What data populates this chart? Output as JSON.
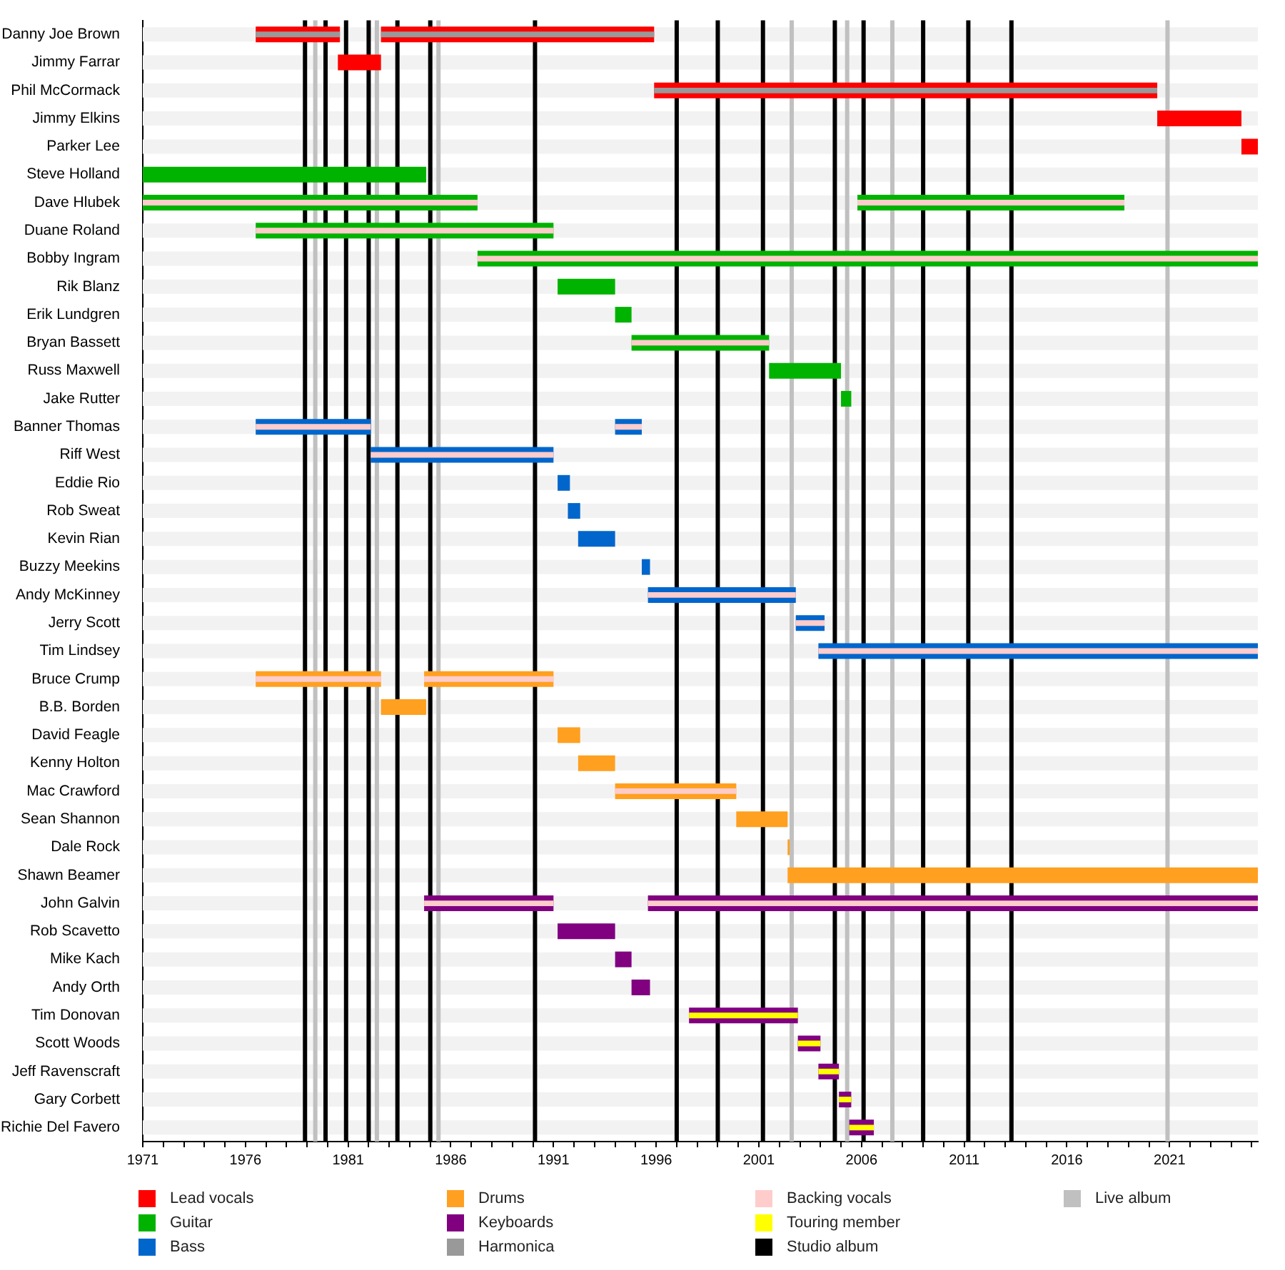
{
  "chart_data": {
    "type": "bar",
    "orientation": "horizontal",
    "legend": "bottom",
    "categories": [
      "Danny Joe Brown",
      "Jimmy Farrar",
      "Phil McCormack",
      "Jimmy Elkins",
      "Parker Lee",
      "Steve Holland",
      "Dave Hlubek",
      "Duane Roland",
      "Bobby Ingram",
      "Rik Blanz",
      "Erik Lundgren",
      "Bryan Bassett",
      "Russ Maxwell",
      "Jake Rutter",
      "Banner Thomas",
      "Riff West",
      "Eddie Rio",
      "Rob Sweat",
      "Kevin Rian",
      "Buzzy Meekins",
      "Andy McKinney",
      "Jerry Scott",
      "Tim Lindsey",
      "Bruce Crump",
      "B.B. Borden",
      "David Feagle",
      "Kenny Holton",
      "Mac Crawford",
      "Sean Shannon",
      "Dale Rock",
      "Shawn Beamer",
      "John Galvin",
      "Rob Scavetto",
      "Mike Kach",
      "Andy Orth",
      "Tim Donovan",
      "Scott Woods",
      "Jeff Ravenscraft",
      "Gary Corbett",
      "Richie Del Favero"
    ],
    "xlim": [
      1971,
      2025.3
    ],
    "xticks": [
      1971,
      {
        "value": 1972,
        "label": null
      },
      {
        "value": 1973,
        "label": null
      },
      {
        "value": 1974,
        "label": null
      },
      {
        "value": 1975,
        "label": null
      },
      1976,
      {
        "value": 1977,
        "label": null
      },
      {
        "value": 1978,
        "label": null
      },
      {
        "value": 1979,
        "label": null
      },
      {
        "value": 1980,
        "label": null
      },
      1981,
      {
        "value": 1982,
        "label": null
      },
      {
        "value": 1983,
        "label": null
      },
      {
        "value": 1984,
        "label": null
      },
      {
        "value": 1985,
        "label": null
      },
      1986,
      {
        "value": 1987,
        "label": null
      },
      {
        "value": 1988,
        "label": null
      },
      {
        "value": 1989,
        "label": null
      },
      {
        "value": 1990,
        "label": null
      },
      1991,
      {
        "value": 1992,
        "label": null
      },
      {
        "value": 1993,
        "label": null
      },
      {
        "value": 1994,
        "label": null
      },
      {
        "value": 1995,
        "label": null
      },
      1996,
      {
        "value": 1997,
        "label": null
      },
      {
        "value": 1998,
        "label": null
      },
      {
        "value": 1999,
        "label": null
      },
      {
        "value": 2000,
        "label": null
      },
      2001,
      {
        "value": 2002,
        "label": null
      },
      {
        "value": 2003,
        "label": null
      },
      {
        "value": 2004,
        "label": null
      },
      {
        "value": 2005,
        "label": null
      },
      2006,
      {
        "value": 2007,
        "label": null
      },
      {
        "value": 2008,
        "label": null
      },
      {
        "value": 2009,
        "label": null
      },
      {
        "value": 2010,
        "label": null
      },
      2011,
      {
        "value": 2012,
        "label": null
      },
      {
        "value": 2013,
        "label": null
      },
      {
        "value": 2014,
        "label": null
      },
      {
        "value": 2015,
        "label": null
      },
      2016,
      {
        "value": 2017,
        "label": null
      },
      {
        "value": 2018,
        "label": null
      },
      {
        "value": 2019,
        "label": null
      },
      {
        "value": 2020,
        "label": null
      },
      2021,
      {
        "value": 2022,
        "label": null
      },
      {
        "value": 2023,
        "label": null
      },
      {
        "value": 2024,
        "label": null
      },
      {
        "value": 2025,
        "label": null
      }
    ],
    "series": [
      {
        "name": "Lead vocals",
        "color": "#ff0000",
        "values": [
          4.1,
          2.1,
          24.5,
          4.1,
          0.8,
          null,
          null,
          null,
          null,
          null,
          null,
          null,
          null,
          null,
          null,
          null,
          null,
          null,
          null,
          null,
          null,
          null,
          null,
          null,
          null,
          null,
          null,
          null,
          null,
          null,
          null,
          null,
          null,
          null,
          null,
          null,
          null,
          null,
          null,
          null
        ],
        "base": [
          1976.5,
          1980.5,
          1995.9,
          2020.4,
          2024.5,
          null,
          null,
          null,
          null,
          null,
          null,
          null,
          null,
          null,
          null,
          null,
          null,
          null,
          null,
          null,
          null,
          null,
          null,
          null,
          null,
          null,
          null,
          null,
          null,
          null,
          null,
          null,
          null,
          null,
          null,
          null,
          null,
          null,
          null,
          null
        ]
      },
      {
        "color": "#ff0000",
        "values": [
          13.3,
          null,
          null,
          null,
          null,
          null,
          null,
          null,
          null,
          null,
          null,
          null,
          null,
          null,
          null,
          null,
          null,
          null,
          null,
          null,
          null,
          null,
          null,
          null,
          null,
          null,
          null,
          null,
          null,
          null,
          null,
          null,
          null,
          null,
          null,
          null,
          null,
          null,
          null,
          null
        ],
        "base": [
          1982.6,
          null,
          null,
          null,
          null,
          null,
          null,
          null,
          null,
          null,
          null,
          null,
          null,
          null,
          null,
          null,
          null,
          null,
          null,
          null,
          null,
          null,
          null,
          null,
          null,
          null,
          null,
          null,
          null,
          null,
          null,
          null,
          null,
          null,
          null,
          null,
          null,
          null,
          null,
          null
        ]
      },
      {
        "name": "Guitar",
        "color": "#00b300",
        "values": [
          null,
          null,
          null,
          null,
          null,
          13.8,
          16.3,
          14.5,
          38.0,
          2.8,
          0.8,
          6.7,
          3.5,
          0.5,
          null,
          null,
          null,
          null,
          null,
          null,
          null,
          null,
          null,
          null,
          null,
          null,
          null,
          null,
          null,
          null,
          null,
          null,
          null,
          null,
          null,
          null,
          null,
          null,
          null,
          null
        ],
        "base": [
          null,
          null,
          null,
          null,
          null,
          1971,
          1971,
          1976.5,
          1987.3,
          1991.2,
          1994.0,
          1994.8,
          2001.5,
          2005.0,
          null,
          null,
          null,
          null,
          null,
          null,
          null,
          null,
          null,
          null,
          null,
          null,
          null,
          null,
          null,
          null,
          null,
          null,
          null,
          null,
          null,
          null,
          null,
          null,
          null,
          null
        ]
      },
      {
        "color": "#00b300",
        "values": [
          null,
          null,
          null,
          null,
          null,
          null,
          13.0,
          null,
          null,
          null,
          null,
          null,
          null,
          null,
          null,
          null,
          null,
          null,
          null,
          null,
          null,
          null,
          null,
          null,
          null,
          null,
          null,
          null,
          null,
          null,
          null,
          null,
          null,
          null,
          null,
          null,
          null,
          null,
          null,
          null
        ],
        "base": [
          null,
          null,
          null,
          null,
          null,
          null,
          2005.8,
          null,
          null,
          null,
          null,
          null,
          null,
          null,
          null,
          null,
          null,
          null,
          null,
          null,
          null,
          null,
          null,
          null,
          null,
          null,
          null,
          null,
          null,
          null,
          null,
          null,
          null,
          null,
          null,
          null,
          null,
          null,
          null,
          null
        ]
      },
      {
        "name": "Bass",
        "color": "#0066cc",
        "values": [
          null,
          null,
          null,
          null,
          null,
          null,
          null,
          null,
          null,
          null,
          null,
          null,
          null,
          null,
          5.6,
          8.9,
          0.6,
          0.6,
          1.8,
          0.4,
          7.2,
          1.4,
          21.4,
          null,
          null,
          null,
          null,
          null,
          null,
          null,
          null,
          null,
          null,
          null,
          null,
          null,
          null,
          null,
          null,
          null
        ],
        "base": [
          null,
          null,
          null,
          null,
          null,
          null,
          null,
          null,
          null,
          null,
          null,
          null,
          null,
          null,
          1976.5,
          1982.1,
          1991.2,
          1991.7,
          1992.2,
          1995.3,
          1995.6,
          2002.8,
          2003.9,
          null,
          null,
          null,
          null,
          null,
          null,
          null,
          null,
          null,
          null,
          null,
          null,
          null,
          null,
          null,
          null,
          null
        ]
      },
      {
        "color": "#0066cc",
        "values": [
          null,
          null,
          null,
          null,
          null,
          null,
          null,
          null,
          null,
          null,
          null,
          null,
          null,
          null,
          1.3,
          null,
          null,
          null,
          null,
          null,
          null,
          null,
          null,
          null,
          null,
          null,
          null,
          null,
          null,
          null,
          null,
          null,
          null,
          null,
          null,
          null,
          null,
          null,
          null,
          null
        ],
        "base": [
          null,
          null,
          null,
          null,
          null,
          null,
          null,
          null,
          null,
          null,
          null,
          null,
          null,
          null,
          1994.0,
          null,
          null,
          null,
          null,
          null,
          null,
          null,
          null,
          null,
          null,
          null,
          null,
          null,
          null,
          null,
          null,
          null,
          null,
          null,
          null,
          null,
          null,
          null,
          null,
          null
        ]
      },
      {
        "name": "Drums",
        "color": "#ffa020",
        "values": [
          null,
          null,
          null,
          null,
          null,
          null,
          null,
          null,
          null,
          null,
          null,
          null,
          null,
          null,
          null,
          null,
          null,
          null,
          null,
          null,
          null,
          null,
          null,
          6.1,
          2.2,
          1.1,
          1.8,
          5.9,
          2.5,
          0.1,
          22.9,
          null,
          null,
          null,
          null,
          null,
          null,
          null,
          null,
          null
        ],
        "base": [
          null,
          null,
          null,
          null,
          null,
          null,
          null,
          null,
          null,
          null,
          null,
          null,
          null,
          null,
          null,
          null,
          null,
          null,
          null,
          null,
          null,
          null,
          null,
          1976.5,
          1982.6,
          1991.2,
          1992.2,
          1994.0,
          1999.9,
          2002.4,
          2002.4,
          null,
          null,
          null,
          null,
          null,
          null,
          null,
          null,
          null
        ]
      },
      {
        "color": "#ffa020",
        "values": [
          null,
          null,
          null,
          null,
          null,
          null,
          null,
          null,
          null,
          null,
          null,
          null,
          null,
          null,
          null,
          null,
          null,
          null,
          null,
          null,
          null,
          null,
          null,
          6.3,
          null,
          null,
          null,
          null,
          null,
          null,
          null,
          null,
          null,
          null,
          null,
          null,
          null,
          null,
          null,
          null
        ],
        "base": [
          null,
          null,
          null,
          null,
          null,
          null,
          null,
          null,
          null,
          null,
          null,
          null,
          null,
          null,
          null,
          null,
          null,
          null,
          null,
          null,
          null,
          null,
          null,
          1984.7,
          null,
          null,
          null,
          null,
          null,
          null,
          null,
          null,
          null,
          null,
          null,
          null,
          null,
          null,
          null,
          null
        ]
      },
      {
        "name": "Keyboards",
        "color": "#800080",
        "values": [
          null,
          null,
          null,
          null,
          null,
          null,
          null,
          null,
          null,
          null,
          null,
          null,
          null,
          null,
          null,
          null,
          null,
          null,
          null,
          null,
          null,
          null,
          null,
          null,
          null,
          null,
          null,
          null,
          null,
          null,
          null,
          6.3,
          2.8,
          0.8,
          0.9,
          5.3,
          1.1,
          1.0,
          0.6,
          1.2
        ],
        "base": [
          null,
          null,
          null,
          null,
          null,
          null,
          null,
          null,
          null,
          null,
          null,
          null,
          null,
          null,
          null,
          null,
          null,
          null,
          null,
          null,
          null,
          null,
          null,
          null,
          null,
          null,
          null,
          null,
          null,
          null,
          null,
          1984.7,
          1991.2,
          1994.0,
          1994.8,
          1997.6,
          2002.9,
          2003.9,
          2004.9,
          2005.4
        ]
      },
      {
        "color": "#800080",
        "values": [
          null,
          null,
          null,
          null,
          null,
          null,
          null,
          null,
          null,
          null,
          null,
          null,
          null,
          null,
          null,
          null,
          null,
          null,
          null,
          null,
          null,
          null,
          null,
          null,
          null,
          null,
          null,
          null,
          null,
          null,
          null,
          29.7,
          null,
          null,
          null,
          null,
          null,
          null,
          null,
          null
        ],
        "base": [
          null,
          null,
          null,
          null,
          null,
          null,
          null,
          null,
          null,
          null,
          null,
          null,
          null,
          null,
          null,
          null,
          null,
          null,
          null,
          null,
          null,
          null,
          null,
          null,
          null,
          null,
          null,
          null,
          null,
          null,
          null,
          1995.6,
          null,
          null,
          null,
          null,
          null,
          null,
          null,
          null
        ]
      },
      {
        "name": "Harmonica",
        "color": "#999999",
        "values": [
          4.1,
          null,
          24.5,
          null,
          null,
          null,
          null,
          null,
          null,
          null,
          null,
          null,
          null,
          null,
          null,
          null,
          null,
          null,
          null,
          null,
          null,
          null,
          null,
          null,
          null,
          null,
          null,
          null,
          null,
          null,
          null,
          null,
          null,
          null,
          null,
          null,
          null,
          null,
          null,
          null
        ],
        "base": [
          1976.5,
          null,
          1995.9,
          null,
          null,
          null,
          null,
          null,
          null,
          null,
          null,
          null,
          null,
          null,
          null,
          null,
          null,
          null,
          null,
          null,
          null,
          null,
          null,
          null,
          null,
          null,
          null,
          null,
          null,
          null,
          null,
          null,
          null,
          null,
          null,
          null,
          null,
          null,
          null,
          null
        ]
      },
      {
        "color": "#999999",
        "values": [
          13.3,
          null,
          null,
          null,
          null,
          null,
          null,
          null,
          null,
          null,
          null,
          null,
          null,
          null,
          null,
          null,
          null,
          null,
          null,
          null,
          null,
          null,
          null,
          null,
          null,
          null,
          null,
          null,
          null,
          null,
          null,
          null,
          null,
          null,
          null,
          null,
          null,
          null,
          null,
          null
        ],
        "base": [
          1982.6,
          null,
          null,
          null,
          null,
          null,
          null,
          null,
          null,
          null,
          null,
          null,
          null,
          null,
          null,
          null,
          null,
          null,
          null,
          null,
          null,
          null,
          null,
          null,
          null,
          null,
          null,
          null,
          null,
          null,
          null,
          null,
          null,
          null,
          null,
          null,
          null,
          null,
          null,
          null
        ]
      },
      {
        "name": "Backing vocals",
        "color": "#ffcccc",
        "values": [
          null,
          null,
          null,
          null,
          null,
          null,
          16.3,
          14.5,
          38.0,
          null,
          null,
          6.7,
          null,
          null,
          5.6,
          8.9,
          null,
          null,
          null,
          null,
          7.2,
          1.4,
          21.4,
          6.1,
          null,
          null,
          null,
          5.9,
          null,
          null,
          null,
          6.3,
          null,
          null,
          null,
          null,
          null,
          null,
          null,
          null
        ],
        "base": [
          null,
          null,
          null,
          null,
          null,
          null,
          1971,
          1976.5,
          1987.3,
          null,
          null,
          1994.8,
          null,
          null,
          1976.5,
          1982.1,
          null,
          null,
          null,
          null,
          1995.6,
          2002.8,
          2003.9,
          1976.5,
          null,
          null,
          null,
          1994.0,
          null,
          null,
          null,
          1984.7,
          null,
          null,
          null,
          null,
          null,
          null,
          null,
          null
        ]
      },
      {
        "color": "#ffcccc",
        "values": [
          null,
          null,
          null,
          null,
          null,
          null,
          13.0,
          null,
          null,
          null,
          null,
          null,
          null,
          null,
          1.3,
          null,
          null,
          null,
          null,
          null,
          null,
          null,
          null,
          6.3,
          null,
          null,
          null,
          null,
          null,
          null,
          null,
          29.7,
          null,
          null,
          null,
          null,
          null,
          null,
          null,
          null
        ],
        "base": [
          null,
          null,
          null,
          null,
          null,
          null,
          2005.8,
          null,
          null,
          null,
          null,
          null,
          null,
          null,
          1994.0,
          null,
          null,
          null,
          null,
          null,
          null,
          null,
          null,
          1984.7,
          null,
          null,
          null,
          null,
          null,
          null,
          null,
          1995.6,
          null,
          null,
          null,
          null,
          null,
          null,
          null,
          null
        ]
      },
      {
        "name": "Touring member",
        "color": "#ffff00",
        "values": [
          null,
          null,
          null,
          null,
          null,
          null,
          null,
          null,
          null,
          null,
          null,
          null,
          null,
          null,
          null,
          null,
          null,
          null,
          null,
          null,
          null,
          null,
          null,
          null,
          null,
          null,
          null,
          null,
          null,
          null,
          null,
          null,
          null,
          null,
          null,
          5.3,
          1.1,
          1.0,
          0.6,
          1.2
        ],
        "base": [
          null,
          null,
          null,
          null,
          null,
          null,
          null,
          null,
          null,
          null,
          null,
          null,
          null,
          null,
          null,
          null,
          null,
          null,
          null,
          null,
          null,
          null,
          null,
          null,
          null,
          null,
          null,
          null,
          null,
          null,
          null,
          null,
          null,
          null,
          null,
          1997.6,
          2002.9,
          2003.9,
          2004.9,
          2005.4
        ]
      }
    ],
    "ref_lines": [
      {
        "axis": "x",
        "value": 1978.9,
        "label": "Studio album",
        "color": "#000000"
      },
      {
        "axis": "x",
        "value": 1979.9,
        "color": "#000000"
      },
      {
        "axis": "x",
        "value": 1980.9,
        "color": "#000000"
      },
      {
        "axis": "x",
        "value": 1982.0,
        "color": "#000000"
      },
      {
        "axis": "x",
        "value": 1983.4,
        "color": "#000000"
      },
      {
        "axis": "x",
        "value": 1985.0,
        "color": "#000000"
      },
      {
        "axis": "x",
        "value": 1990.1,
        "color": "#000000"
      },
      {
        "axis": "x",
        "value": 1997.0,
        "color": "#000000"
      },
      {
        "axis": "x",
        "value": 1999.0,
        "color": "#000000"
      },
      {
        "axis": "x",
        "value": 2001.2,
        "color": "#000000"
      },
      {
        "axis": "x",
        "value": 2004.7,
        "color": "#000000"
      },
      {
        "axis": "x",
        "value": 2006.1,
        "color": "#000000"
      },
      {
        "axis": "x",
        "value": 2009.0,
        "color": "#000000"
      },
      {
        "axis": "x",
        "value": 2011.2,
        "color": "#000000"
      },
      {
        "axis": "x",
        "value": 2013.3,
        "color": "#000000"
      },
      {
        "axis": "x",
        "value": 1979.4,
        "label": "Live album",
        "color": "#c0c0c0"
      },
      {
        "axis": "x",
        "value": 1982.4,
        "color": "#c0c0c0"
      },
      {
        "axis": "x",
        "value": 1985.4,
        "color": "#c0c0c0"
      },
      {
        "axis": "x",
        "value": 2002.6,
        "color": "#c0c0c0"
      },
      {
        "axis": "x",
        "value": 2005.3,
        "color": "#c0c0c0"
      },
      {
        "axis": "x",
        "value": 2007.5,
        "color": "#c0c0c0"
      },
      {
        "axis": "x",
        "value": 2020.9,
        "color": "#c0c0c0"
      }
    ]
  }
}
